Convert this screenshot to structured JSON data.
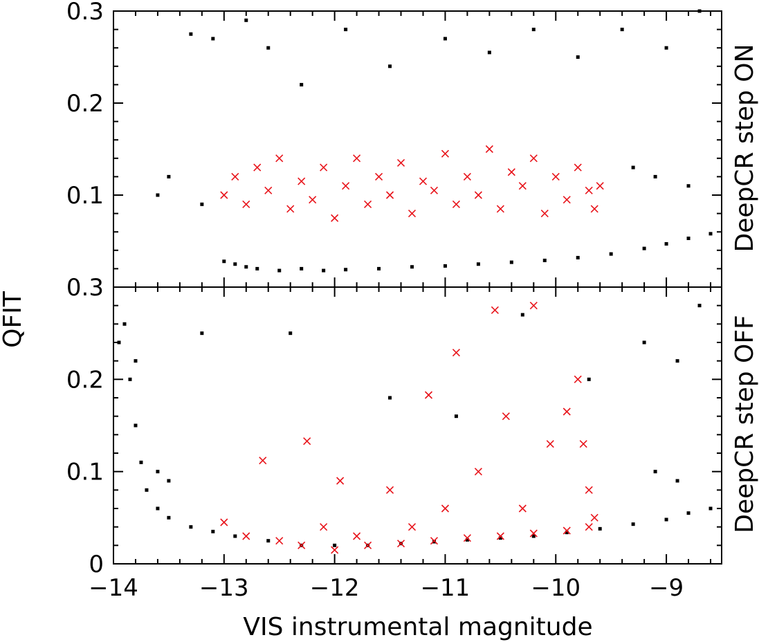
{
  "chart_data": [
    {
      "type": "scatter",
      "panel": "top",
      "side_label": "DeepCR step ON",
      "xlim": [
        -14,
        -8.5
      ],
      "ylim": [
        0,
        0.3
      ],
      "y_ticks": [
        "0.1",
        "0.2",
        "0.3"
      ],
      "x_ticks": [],
      "series": [
        {
          "name": "",
          "marker": "square",
          "color": "#000000",
          "points": [
            [
              -13.0,
              0.028
            ],
            [
              -12.9,
              0.025
            ],
            [
              -12.8,
              0.022
            ],
            [
              -12.7,
              0.02
            ],
            [
              -12.5,
              0.018
            ],
            [
              -12.3,
              0.02
            ],
            [
              -12.1,
              0.018
            ],
            [
              -11.9,
              0.019
            ],
            [
              -11.6,
              0.02
            ],
            [
              -11.3,
              0.022
            ],
            [
              -11.0,
              0.023
            ],
            [
              -10.7,
              0.025
            ],
            [
              -10.4,
              0.027
            ],
            [
              -10.1,
              0.029
            ],
            [
              -9.8,
              0.032
            ],
            [
              -9.5,
              0.036
            ],
            [
              -9.2,
              0.042
            ],
            [
              -9.0,
              0.047
            ],
            [
              -8.8,
              0.053
            ],
            [
              -8.6,
              0.058
            ],
            [
              -13.3,
              0.275
            ],
            [
              -13.1,
              0.27
            ],
            [
              -12.8,
              0.29
            ],
            [
              -12.6,
              0.26
            ],
            [
              -12.3,
              0.22
            ],
            [
              -11.9,
              0.28
            ],
            [
              -11.5,
              0.24
            ],
            [
              -11.0,
              0.27
            ],
            [
              -10.6,
              0.255
            ],
            [
              -10.2,
              0.28
            ],
            [
              -9.8,
              0.25
            ],
            [
              -9.4,
              0.28
            ],
            [
              -9.0,
              0.26
            ],
            [
              -8.7,
              0.3
            ],
            [
              -13.5,
              0.12
            ],
            [
              -13.2,
              0.09
            ],
            [
              -13.6,
              0.1
            ],
            [
              -9.3,
              0.13
            ],
            [
              -9.1,
              0.12
            ],
            [
              -8.8,
              0.11
            ]
          ]
        },
        {
          "name": "",
          "marker": "x",
          "color": "#e8141b",
          "points": [
            [
              -13.0,
              0.1
            ],
            [
              -12.9,
              0.12
            ],
            [
              -12.8,
              0.09
            ],
            [
              -12.7,
              0.13
            ],
            [
              -12.6,
              0.105
            ],
            [
              -12.5,
              0.14
            ],
            [
              -12.4,
              0.085
            ],
            [
              -12.3,
              0.115
            ],
            [
              -12.2,
              0.095
            ],
            [
              -12.1,
              0.13
            ],
            [
              -12.0,
              0.075
            ],
            [
              -11.9,
              0.11
            ],
            [
              -11.8,
              0.14
            ],
            [
              -11.7,
              0.09
            ],
            [
              -11.6,
              0.12
            ],
            [
              -11.5,
              0.1
            ],
            [
              -11.4,
              0.135
            ],
            [
              -11.3,
              0.08
            ],
            [
              -11.2,
              0.115
            ],
            [
              -11.1,
              0.105
            ],
            [
              -11.0,
              0.145
            ],
            [
              -10.9,
              0.09
            ],
            [
              -10.8,
              0.12
            ],
            [
              -10.7,
              0.1
            ],
            [
              -10.6,
              0.15
            ],
            [
              -10.5,
              0.085
            ],
            [
              -10.4,
              0.125
            ],
            [
              -10.3,
              0.11
            ],
            [
              -10.2,
              0.14
            ],
            [
              -10.1,
              0.08
            ],
            [
              -10.0,
              0.12
            ],
            [
              -9.9,
              0.095
            ],
            [
              -9.8,
              0.13
            ],
            [
              -9.7,
              0.105
            ],
            [
              -9.65,
              0.085
            ],
            [
              -9.6,
              0.11
            ]
          ]
        }
      ]
    },
    {
      "type": "scatter",
      "panel": "bottom",
      "side_label": "DeepCR step OFF",
      "xlim": [
        -14,
        -8.5
      ],
      "ylim": [
        0,
        0.3
      ],
      "x_ticks": [
        "−14",
        "−13",
        "−12",
        "−11",
        "−10",
        "−9"
      ],
      "y_ticks": [
        "0",
        "0.1",
        "0.2",
        "0.3"
      ],
      "xlabel": "VIS instrumental magnitude",
      "ylabel": "QFIT",
      "series": [
        {
          "name": "",
          "marker": "square",
          "color": "#000000",
          "points": [
            [
              -13.95,
              0.24
            ],
            [
              -13.85,
              0.2
            ],
            [
              -13.8,
              0.15
            ],
            [
              -13.75,
              0.11
            ],
            [
              -13.7,
              0.08
            ],
            [
              -13.6,
              0.06
            ],
            [
              -13.5,
              0.05
            ],
            [
              -13.3,
              0.04
            ],
            [
              -13.1,
              0.035
            ],
            [
              -12.9,
              0.03
            ],
            [
              -12.6,
              0.025
            ],
            [
              -12.3,
              0.02
            ],
            [
              -12.0,
              0.02
            ],
            [
              -11.7,
              0.02
            ],
            [
              -11.4,
              0.022
            ],
            [
              -11.1,
              0.024
            ],
            [
              -10.8,
              0.026
            ],
            [
              -10.5,
              0.028
            ],
            [
              -10.2,
              0.03
            ],
            [
              -9.9,
              0.034
            ],
            [
              -9.6,
              0.038
            ],
            [
              -9.3,
              0.043
            ],
            [
              -9.0,
              0.048
            ],
            [
              -8.8,
              0.055
            ],
            [
              -8.6,
              0.06
            ],
            [
              -13.2,
              0.25
            ],
            [
              -12.4,
              0.25
            ],
            [
              -11.5,
              0.18
            ],
            [
              -10.9,
              0.16
            ],
            [
              -10.3,
              0.27
            ],
            [
              -9.7,
              0.2
            ],
            [
              -9.2,
              0.24
            ],
            [
              -8.9,
              0.22
            ],
            [
              -8.7,
              0.28
            ],
            [
              -13.9,
              0.26
            ],
            [
              -13.8,
              0.22
            ],
            [
              -13.6,
              0.1
            ],
            [
              -13.5,
              0.09
            ],
            [
              -9.1,
              0.1
            ],
            [
              -8.9,
              0.09
            ]
          ]
        },
        {
          "name": "",
          "marker": "x",
          "color": "#e8141b",
          "points": [
            [
              -13.0,
              0.045
            ],
            [
              -12.8,
              0.03
            ],
            [
              -12.65,
              0.112
            ],
            [
              -12.5,
              0.025
            ],
            [
              -12.25,
              0.133
            ],
            [
              -12.1,
              0.04
            ],
            [
              -11.95,
              0.09
            ],
            [
              -11.8,
              0.03
            ],
            [
              -11.5,
              0.08
            ],
            [
              -11.3,
              0.04
            ],
            [
              -11.15,
              0.183
            ],
            [
              -11.0,
              0.06
            ],
            [
              -10.9,
              0.229
            ],
            [
              -10.7,
              0.1
            ],
            [
              -10.55,
              0.275
            ],
            [
              -10.45,
              0.16
            ],
            [
              -10.3,
              0.06
            ],
            [
              -10.2,
              0.28
            ],
            [
              -10.05,
              0.13
            ],
            [
              -9.9,
              0.165
            ],
            [
              -9.8,
              0.2
            ],
            [
              -9.75,
              0.13
            ],
            [
              -9.7,
              0.08
            ],
            [
              -9.65,
              0.05
            ],
            [
              -12.3,
              0.02
            ],
            [
              -12.0,
              0.015
            ],
            [
              -11.7,
              0.02
            ],
            [
              -11.4,
              0.022
            ],
            [
              -11.1,
              0.025
            ],
            [
              -10.8,
              0.028
            ],
            [
              -10.5,
              0.03
            ],
            [
              -10.2,
              0.033
            ],
            [
              -9.9,
              0.036
            ],
            [
              -9.7,
              0.04
            ]
          ]
        }
      ]
    }
  ]
}
